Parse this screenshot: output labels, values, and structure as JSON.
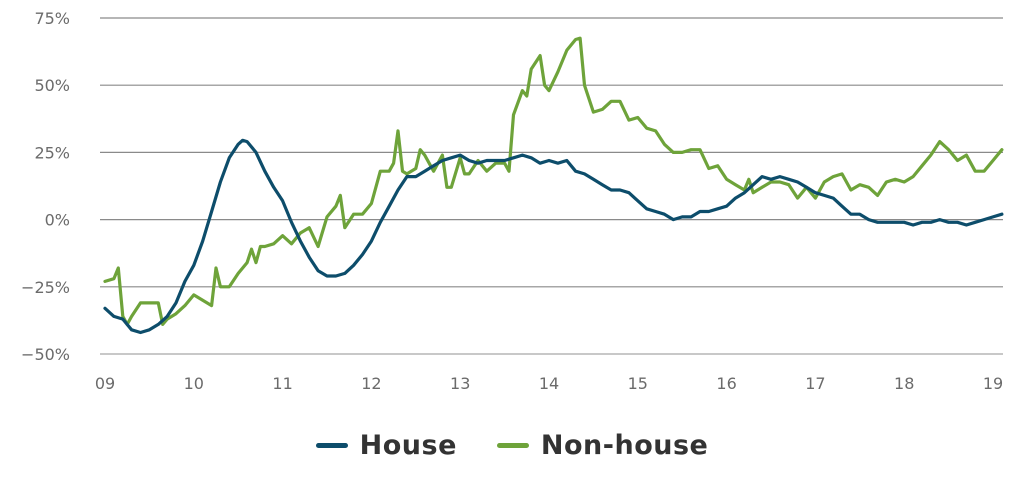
{
  "chart_data": {
    "type": "line",
    "title": "",
    "xlabel": "",
    "ylabel": "",
    "x_ticks": [
      "09",
      "10",
      "11",
      "12",
      "13",
      "14",
      "15",
      "16",
      "17",
      "18",
      "19"
    ],
    "y_ticks": [
      {
        "value": 75,
        "label": "75%"
      },
      {
        "value": 50,
        "label": "50%"
      },
      {
        "value": 25,
        "label": "25%"
      },
      {
        "value": 0,
        "label": "0%"
      },
      {
        "value": -25,
        "label": "−25%"
      },
      {
        "value": -50,
        "label": "−50%"
      }
    ],
    "xlim": [
      2009,
      2019.1
    ],
    "ylim": [
      -50,
      75
    ],
    "grid": "horizontal",
    "legend_position": "bottom-center",
    "series": [
      {
        "name": "House",
        "color": "#0d4d6b",
        "points": [
          [
            2009.0,
            -33
          ],
          [
            2009.1,
            -36
          ],
          [
            2009.2,
            -37
          ],
          [
            2009.3,
            -41
          ],
          [
            2009.4,
            -42
          ],
          [
            2009.5,
            -41
          ],
          [
            2009.6,
            -39
          ],
          [
            2009.7,
            -36
          ],
          [
            2009.8,
            -31
          ],
          [
            2009.9,
            -23
          ],
          [
            2010.0,
            -17
          ],
          [
            2010.1,
            -8
          ],
          [
            2010.2,
            3
          ],
          [
            2010.3,
            14
          ],
          [
            2010.4,
            23
          ],
          [
            2010.5,
            28
          ],
          [
            2010.55,
            29.5
          ],
          [
            2010.6,
            29
          ],
          [
            2010.7,
            25
          ],
          [
            2010.8,
            18
          ],
          [
            2010.9,
            12
          ],
          [
            2011.0,
            7
          ],
          [
            2011.1,
            -1
          ],
          [
            2011.2,
            -8
          ],
          [
            2011.3,
            -14
          ],
          [
            2011.4,
            -19
          ],
          [
            2011.5,
            -21
          ],
          [
            2011.6,
            -21
          ],
          [
            2011.7,
            -20
          ],
          [
            2011.8,
            -17
          ],
          [
            2011.9,
            -13
          ],
          [
            2012.0,
            -8
          ],
          [
            2012.1,
            -1
          ],
          [
            2012.2,
            5
          ],
          [
            2012.3,
            11
          ],
          [
            2012.4,
            16
          ],
          [
            2012.5,
            16
          ],
          [
            2012.6,
            18
          ],
          [
            2012.7,
            20
          ],
          [
            2012.8,
            22
          ],
          [
            2012.9,
            23
          ],
          [
            2013.0,
            24
          ],
          [
            2013.1,
            22
          ],
          [
            2013.2,
            21
          ],
          [
            2013.3,
            22
          ],
          [
            2013.4,
            22
          ],
          [
            2013.5,
            22
          ],
          [
            2013.6,
            23
          ],
          [
            2013.7,
            24
          ],
          [
            2013.8,
            23
          ],
          [
            2013.9,
            21
          ],
          [
            2014.0,
            22
          ],
          [
            2014.1,
            21
          ],
          [
            2014.2,
            22
          ],
          [
            2014.3,
            18
          ],
          [
            2014.4,
            17
          ],
          [
            2014.5,
            15
          ],
          [
            2014.6,
            13
          ],
          [
            2014.7,
            11
          ],
          [
            2014.8,
            11
          ],
          [
            2014.9,
            10
          ],
          [
            2015.0,
            7
          ],
          [
            2015.1,
            4
          ],
          [
            2015.2,
            3
          ],
          [
            2015.3,
            2
          ],
          [
            2015.4,
            0
          ],
          [
            2015.5,
            1
          ],
          [
            2015.6,
            1
          ],
          [
            2015.7,
            3
          ],
          [
            2015.8,
            3
          ],
          [
            2015.9,
            4
          ],
          [
            2016.0,
            5
          ],
          [
            2016.1,
            8
          ],
          [
            2016.2,
            10
          ],
          [
            2016.3,
            13
          ],
          [
            2016.4,
            16
          ],
          [
            2016.5,
            15
          ],
          [
            2016.6,
            16
          ],
          [
            2016.7,
            15
          ],
          [
            2016.8,
            14
          ],
          [
            2016.9,
            12
          ],
          [
            2017.0,
            10
          ],
          [
            2017.1,
            9
          ],
          [
            2017.2,
            8
          ],
          [
            2017.3,
            5
          ],
          [
            2017.4,
            2
          ],
          [
            2017.5,
            2
          ],
          [
            2017.6,
            0
          ],
          [
            2017.7,
            -1
          ],
          [
            2017.8,
            -1
          ],
          [
            2017.9,
            -1
          ],
          [
            2018.0,
            -1
          ],
          [
            2018.1,
            -2
          ],
          [
            2018.2,
            -1
          ],
          [
            2018.3,
            -1
          ],
          [
            2018.4,
            0
          ],
          [
            2018.5,
            -1
          ],
          [
            2018.6,
            -1
          ],
          [
            2018.7,
            -2
          ],
          [
            2018.8,
            -1
          ],
          [
            2018.9,
            0
          ],
          [
            2019.0,
            1
          ],
          [
            2019.1,
            2
          ]
        ]
      },
      {
        "name": "Non-house",
        "color": "#6ea33a",
        "points": [
          [
            2009.0,
            -23
          ],
          [
            2009.1,
            -22
          ],
          [
            2009.15,
            -18
          ],
          [
            2009.2,
            -36
          ],
          [
            2009.25,
            -39
          ],
          [
            2009.3,
            -36
          ],
          [
            2009.4,
            -31
          ],
          [
            2009.5,
            -31
          ],
          [
            2009.6,
            -31
          ],
          [
            2009.65,
            -39
          ],
          [
            2009.7,
            -37
          ],
          [
            2009.8,
            -35
          ],
          [
            2009.9,
            -32
          ],
          [
            2010.0,
            -28
          ],
          [
            2010.1,
            -30
          ],
          [
            2010.2,
            -32
          ],
          [
            2010.25,
            -18
          ],
          [
            2010.3,
            -25
          ],
          [
            2010.4,
            -25
          ],
          [
            2010.5,
            -20
          ],
          [
            2010.6,
            -16
          ],
          [
            2010.65,
            -11
          ],
          [
            2010.7,
            -16
          ],
          [
            2010.75,
            -10
          ],
          [
            2010.8,
            -10
          ],
          [
            2010.9,
            -9
          ],
          [
            2011.0,
            -6
          ],
          [
            2011.1,
            -9
          ],
          [
            2011.2,
            -5
          ],
          [
            2011.3,
            -3
          ],
          [
            2011.4,
            -10
          ],
          [
            2011.5,
            1
          ],
          [
            2011.6,
            5
          ],
          [
            2011.65,
            9
          ],
          [
            2011.7,
            -3
          ],
          [
            2011.8,
            2
          ],
          [
            2011.9,
            2
          ],
          [
            2012.0,
            6
          ],
          [
            2012.1,
            18
          ],
          [
            2012.2,
            18
          ],
          [
            2012.25,
            21
          ],
          [
            2012.3,
            33
          ],
          [
            2012.35,
            18
          ],
          [
            2012.4,
            17
          ],
          [
            2012.5,
            19
          ],
          [
            2012.55,
            26
          ],
          [
            2012.6,
            24
          ],
          [
            2012.7,
            18
          ],
          [
            2012.8,
            24
          ],
          [
            2012.85,
            12
          ],
          [
            2012.9,
            12
          ],
          [
            2013.0,
            23
          ],
          [
            2013.05,
            17
          ],
          [
            2013.1,
            17
          ],
          [
            2013.2,
            22
          ],
          [
            2013.3,
            18
          ],
          [
            2013.4,
            21
          ],
          [
            2013.5,
            21
          ],
          [
            2013.55,
            18
          ],
          [
            2013.6,
            39
          ],
          [
            2013.7,
            48
          ],
          [
            2013.75,
            46
          ],
          [
            2013.8,
            56
          ],
          [
            2013.9,
            61
          ],
          [
            2013.95,
            50
          ],
          [
            2014.0,
            48
          ],
          [
            2014.1,
            55
          ],
          [
            2014.2,
            63
          ],
          [
            2014.3,
            67
          ],
          [
            2014.35,
            67.5
          ],
          [
            2014.4,
            50
          ],
          [
            2014.5,
            40
          ],
          [
            2014.6,
            41
          ],
          [
            2014.7,
            44
          ],
          [
            2014.8,
            44
          ],
          [
            2014.9,
            37
          ],
          [
            2015.0,
            38
          ],
          [
            2015.1,
            34
          ],
          [
            2015.2,
            33
          ],
          [
            2015.3,
            28
          ],
          [
            2015.4,
            25
          ],
          [
            2015.5,
            25
          ],
          [
            2015.6,
            26
          ],
          [
            2015.7,
            26
          ],
          [
            2015.8,
            19
          ],
          [
            2015.9,
            20
          ],
          [
            2016.0,
            15
          ],
          [
            2016.1,
            13
          ],
          [
            2016.2,
            11
          ],
          [
            2016.25,
            15
          ],
          [
            2016.3,
            10
          ],
          [
            2016.4,
            12
          ],
          [
            2016.5,
            14
          ],
          [
            2016.6,
            14
          ],
          [
            2016.7,
            13
          ],
          [
            2016.8,
            8
          ],
          [
            2016.9,
            12
          ],
          [
            2017.0,
            8
          ],
          [
            2017.1,
            14
          ],
          [
            2017.2,
            16
          ],
          [
            2017.3,
            17
          ],
          [
            2017.4,
            11
          ],
          [
            2017.5,
            13
          ],
          [
            2017.6,
            12
          ],
          [
            2017.7,
            9
          ],
          [
            2017.8,
            14
          ],
          [
            2017.9,
            15
          ],
          [
            2018.0,
            14
          ],
          [
            2018.1,
            16
          ],
          [
            2018.2,
            20
          ],
          [
            2018.3,
            24
          ],
          [
            2018.4,
            29
          ],
          [
            2018.5,
            26
          ],
          [
            2018.6,
            22
          ],
          [
            2018.7,
            24
          ],
          [
            2018.8,
            18
          ],
          [
            2018.9,
            18
          ],
          [
            2019.0,
            22
          ],
          [
            2019.1,
            26
          ]
        ]
      }
    ]
  }
}
